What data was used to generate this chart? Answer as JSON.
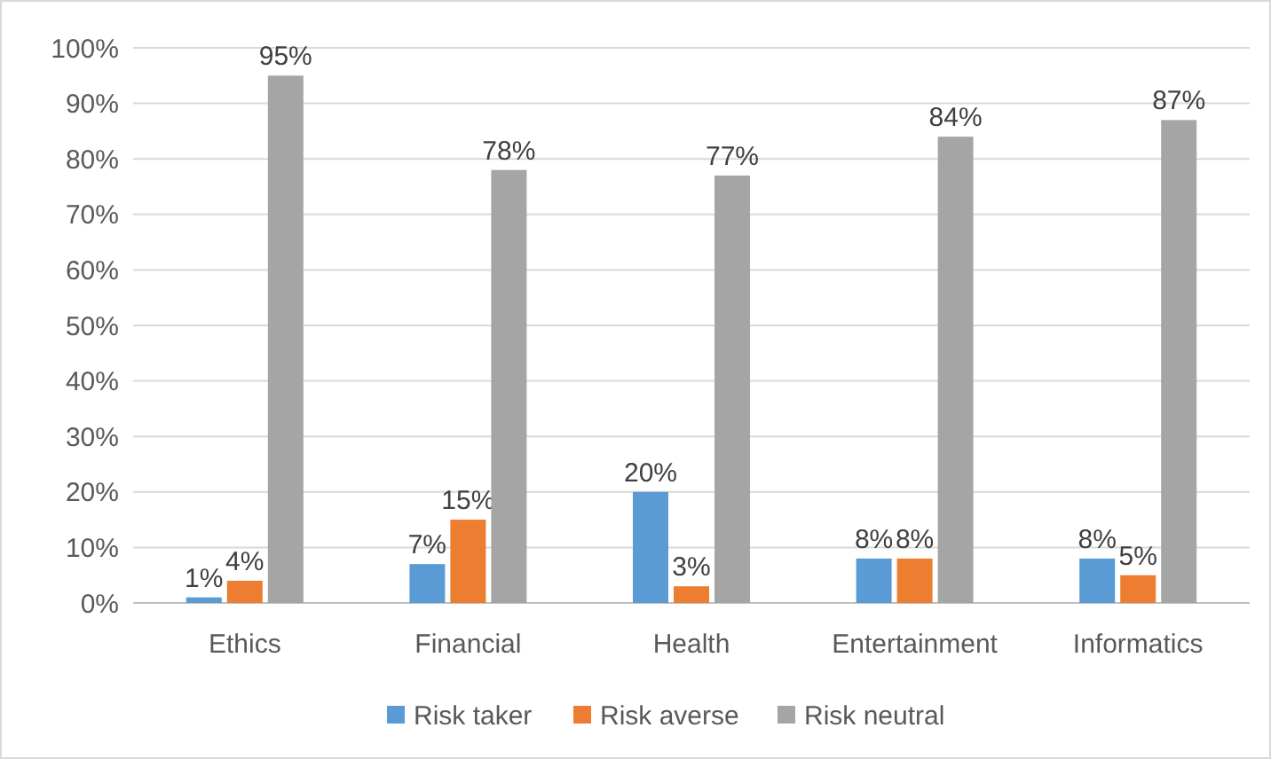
{
  "chart_data": {
    "type": "bar",
    "categories": [
      "Ethics",
      "Financial",
      "Health",
      "Entertainment",
      "Informatics"
    ],
    "series": [
      {
        "name": "Risk taker",
        "color": "#5b9bd5",
        "values": [
          1,
          7,
          20,
          8,
          8
        ],
        "value_labels": [
          "1%",
          "7%",
          "20%",
          "8%",
          "8%"
        ]
      },
      {
        "name": "Risk averse",
        "color": "#ed7d31",
        "values": [
          4,
          15,
          3,
          8,
          5
        ],
        "value_labels": [
          "4%",
          "15%",
          "3%",
          "8%",
          "5%"
        ]
      },
      {
        "name": "Risk neutral",
        "color": "#a5a5a5",
        "values": [
          95,
          78,
          77,
          84,
          87
        ],
        "value_labels": [
          "95%",
          "78%",
          "77%",
          "84%",
          "87%"
        ]
      }
    ],
    "ylim": [
      0,
      100
    ],
    "yticks": [
      {
        "value": 0,
        "label": "0%"
      },
      {
        "value": 10,
        "label": "10%"
      },
      {
        "value": 20,
        "label": "20%"
      },
      {
        "value": 30,
        "label": "30%"
      },
      {
        "value": 40,
        "label": "40%"
      },
      {
        "value": 50,
        "label": "50%"
      },
      {
        "value": 60,
        "label": "60%"
      },
      {
        "value": 70,
        "label": "70%"
      },
      {
        "value": 80,
        "label": "80%"
      },
      {
        "value": 90,
        "label": "90%"
      },
      {
        "value": 100,
        "label": "100%"
      }
    ],
    "grid": "y",
    "legend": "bottom"
  }
}
